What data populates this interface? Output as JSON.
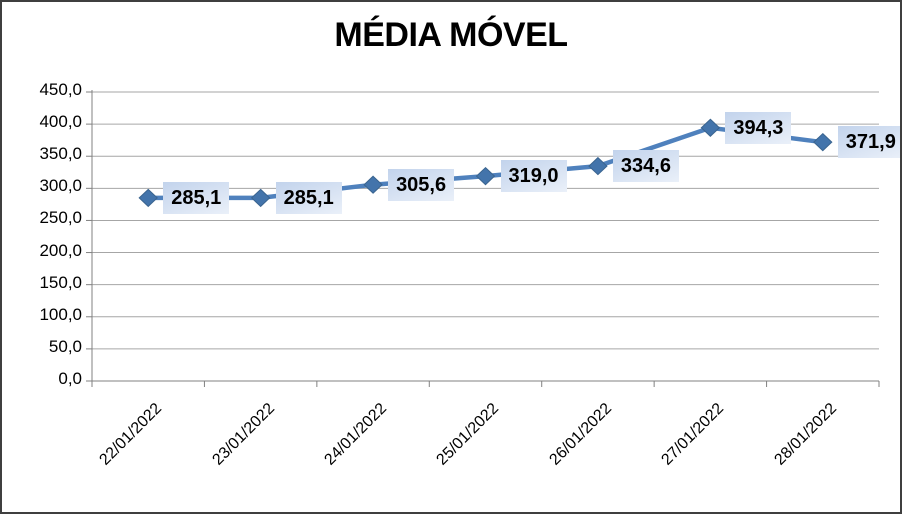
{
  "chart_data": {
    "type": "line",
    "title": "MÉDIA MÓVEL",
    "categories": [
      "22/01/2022",
      "23/01/2022",
      "24/01/2022",
      "25/01/2022",
      "26/01/2022",
      "27/01/2022",
      "28/01/2022"
    ],
    "values": [
      285.1,
      285.1,
      305.6,
      319.0,
      334.6,
      394.3,
      371.9
    ],
    "point_labels": [
      "285,1",
      "285,1",
      "305,6",
      "319,0",
      "334,6",
      "394,3",
      "371,9"
    ],
    "y_tick_labels": [
      "0,0",
      "50,0",
      "100,0",
      "150,0",
      "200,0",
      "250,0",
      "300,0",
      "350,0",
      "400,0",
      "450,0"
    ],
    "ylim": [
      0,
      450
    ],
    "y_step": 50,
    "grid": true,
    "legend": "none",
    "marker": "diamond",
    "colors": {
      "line": "#4F81BD",
      "marker_fill": "#4374AB",
      "marker_stroke": "#3A648F",
      "gridline": "#A6A6A6",
      "axis": "#808080",
      "label_fill_top": "#c2d3ec",
      "label_fill_bottom": "#eaf0f9",
      "text": "#000000",
      "frame_border": "#3f3f3f"
    }
  }
}
